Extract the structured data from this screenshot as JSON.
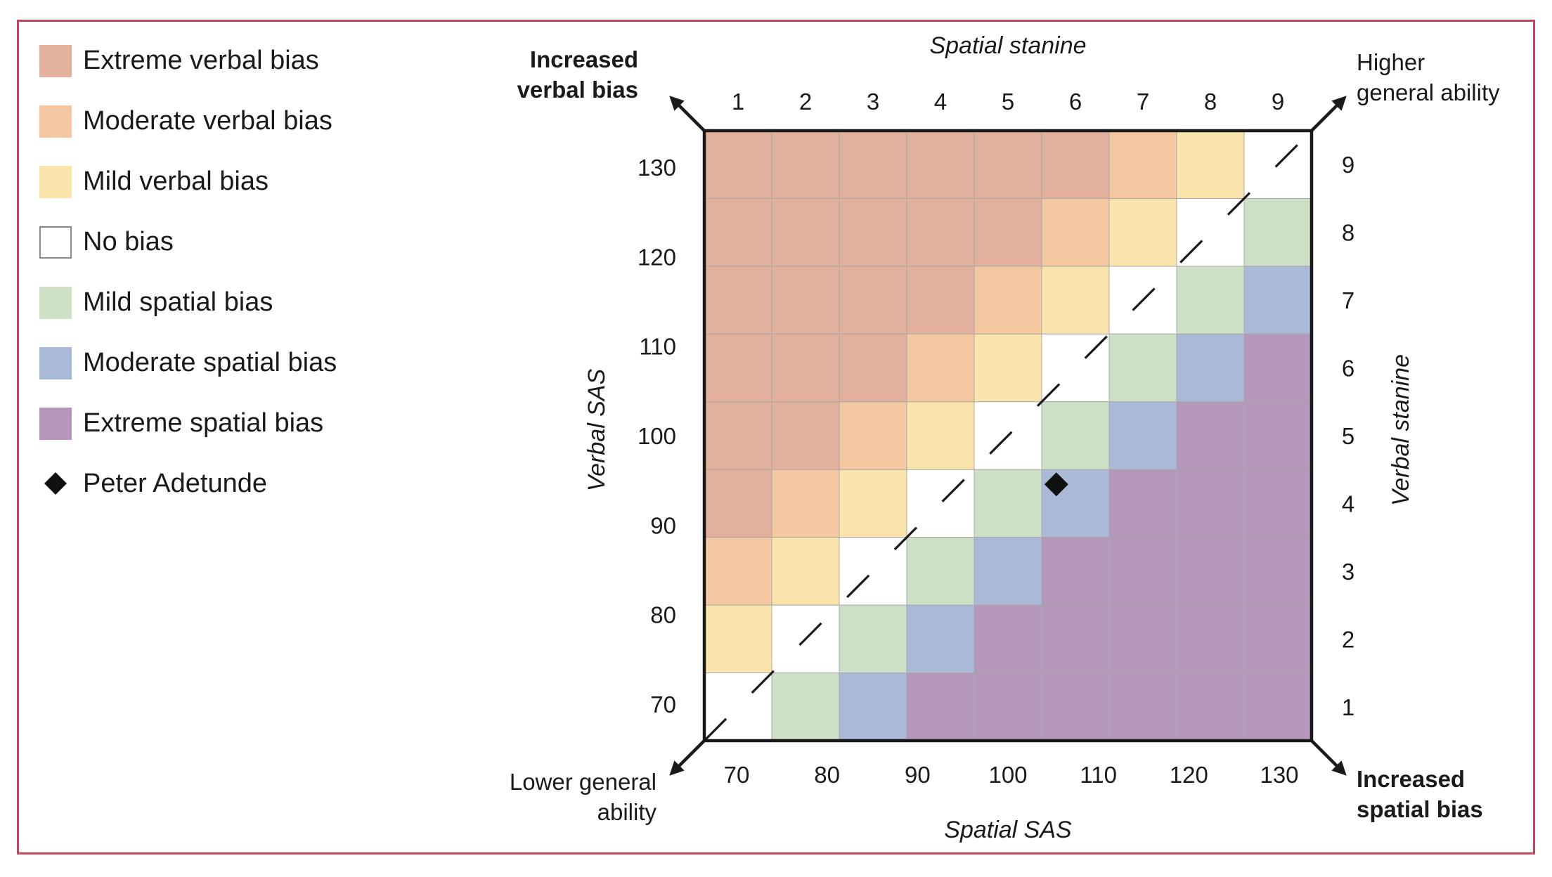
{
  "legend": {
    "items": [
      {
        "label": "Extreme verbal bias",
        "color": "#e2b09c"
      },
      {
        "label": "Moderate verbal bias",
        "color": "#f4c7a1"
      },
      {
        "label": "Mild verbal bias",
        "color": "#fbe4ab"
      },
      {
        "label": "No bias",
        "color": "#ffffff"
      },
      {
        "label": "Mild spatial bias",
        "color": "#cde0c6"
      },
      {
        "label": "Moderate spatial bias",
        "color": "#aab9d8"
      },
      {
        "label": "Extreme spatial bias",
        "color": "#b497ba"
      }
    ],
    "marker_label": "Peter Adetunde"
  },
  "chart_data": {
    "type": "heatmap",
    "title": "",
    "xlabel": "Spatial SAS",
    "ylabel": "Verbal SAS",
    "x2label": "Spatial stanine",
    "y2label": "Verbal stanine",
    "x_ticks": [
      "70",
      "80",
      "90",
      "100",
      "110",
      "120",
      "130"
    ],
    "y_ticks": [
      "130",
      "120",
      "110",
      "100",
      "90",
      "80",
      "70"
    ],
    "x2_ticks": [
      "1",
      "2",
      "3",
      "4",
      "5",
      "6",
      "7",
      "8",
      "9"
    ],
    "y2_ticks": [
      "9",
      "8",
      "7",
      "6",
      "5",
      "4",
      "3",
      "2",
      "1"
    ],
    "xlim": [
      66,
      135
    ],
    "ylim": [
      66,
      135
    ],
    "bias_levels": [
      "Extreme spatial bias",
      "Moderate spatial bias",
      "Mild spatial bias",
      "No bias",
      "Mild verbal bias",
      "Moderate verbal bias",
      "Extreme verbal bias"
    ],
    "grid_rule": "bias level index = 3 + clamp(verbal_stanine - spatial_stanine, -3, 3)",
    "diagonal": "dashed line from lowest to highest stanine corner",
    "corners": {
      "top_left": "Increased verbal bias",
      "top_right": "Higher general ability",
      "bottom_left": "Lower general ability",
      "bottom_right": "Increased spatial bias"
    },
    "points": [
      {
        "name": "Peter Adetunde",
        "spatial_sas": 106,
        "verbal_sas": 95
      }
    ]
  }
}
